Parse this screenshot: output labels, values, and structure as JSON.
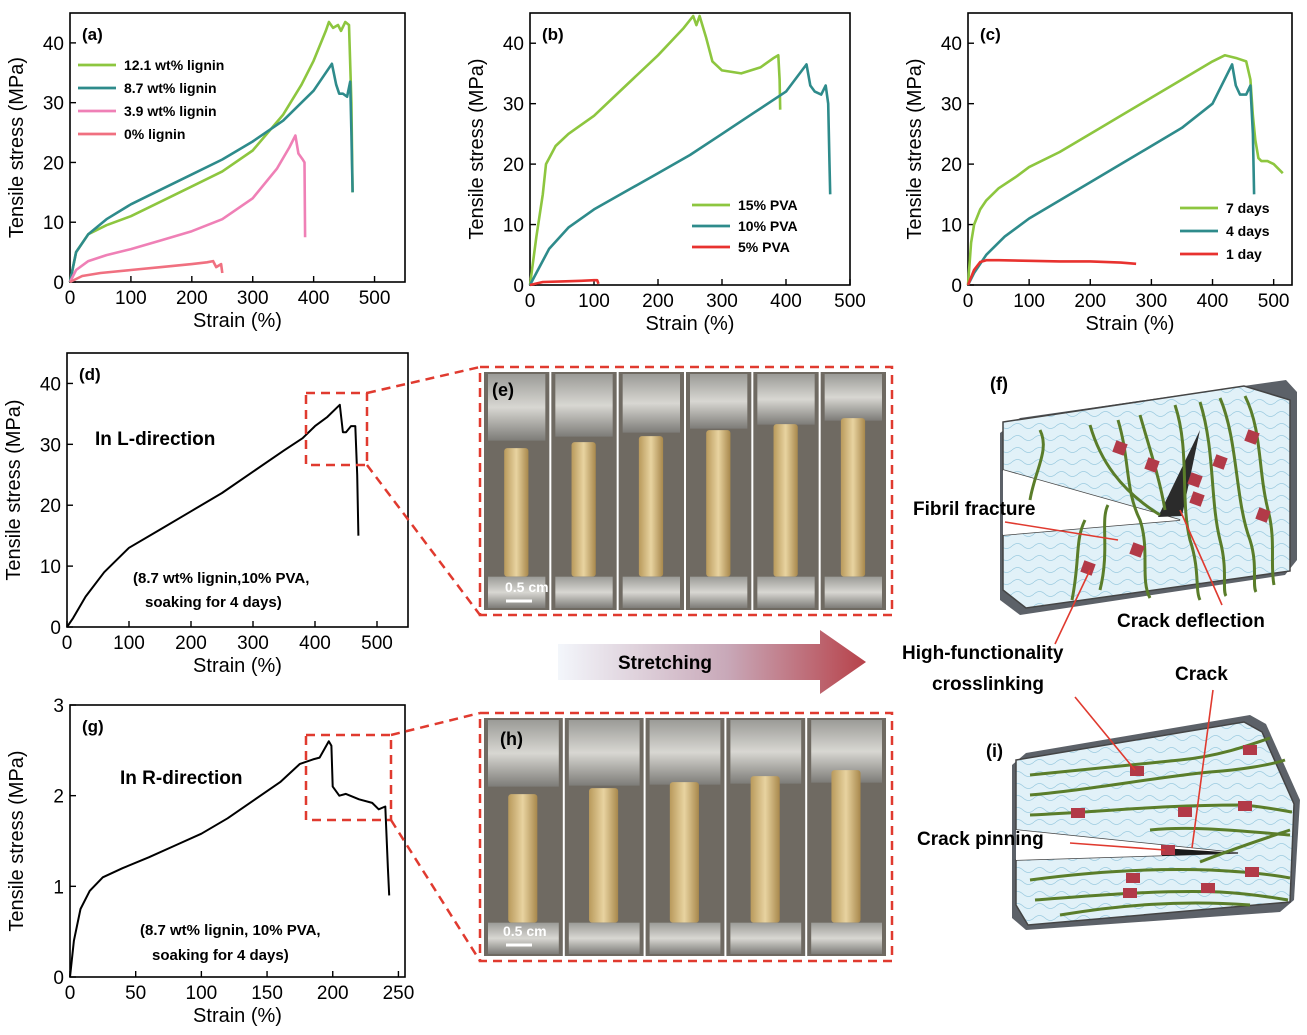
{
  "chart_data": [
    {
      "panel": "(a)",
      "type": "line",
      "xlabel": "Strain (%)",
      "ylabel": "Tensile stress (MPa)",
      "xlim": [
        0,
        550
      ],
      "ylim": [
        0,
        45
      ],
      "xticks": [
        0,
        100,
        200,
        300,
        400,
        500
      ],
      "yticks": [
        0,
        10,
        20,
        30,
        40
      ],
      "legend_position": "top-left",
      "series": [
        {
          "name": "12.1 wt% lignin",
          "color": "#8dc63f",
          "x": [
            0,
            10,
            30,
            60,
            100,
            150,
            200,
            250,
            300,
            350,
            380,
            400,
            420,
            425,
            432,
            440,
            445,
            452,
            458,
            462,
            464
          ],
          "y": [
            0,
            5,
            8,
            9.5,
            11,
            13.5,
            16,
            18.5,
            22,
            28,
            33,
            37,
            42,
            43.5,
            42.5,
            43,
            42,
            43.5,
            43,
            30,
            15
          ]
        },
        {
          "name": "8.7 wt% lignin",
          "color": "#2e8b8b",
          "x": [
            0,
            10,
            30,
            60,
            100,
            150,
            200,
            250,
            300,
            350,
            400,
            430,
            437,
            442,
            448,
            455,
            460,
            462,
            464
          ],
          "y": [
            0,
            5,
            8,
            10.5,
            13,
            15.5,
            18,
            20.5,
            23.5,
            27,
            32,
            36.5,
            33,
            31.5,
            31.5,
            31,
            33.5,
            25,
            15
          ]
        },
        {
          "name": "3.9 wt% lignin",
          "color": "#ef80b6",
          "x": [
            0,
            10,
            30,
            60,
            100,
            150,
            200,
            250,
            300,
            340,
            360,
            370,
            375,
            382,
            385,
            386
          ],
          "y": [
            0,
            2,
            3.5,
            4.5,
            5.5,
            7,
            8.5,
            10.5,
            14,
            19,
            22.5,
            24.5,
            21.5,
            20.5,
            20,
            7.5
          ]
        },
        {
          "name": "0% lignin",
          "color": "#f07080",
          "x": [
            0,
            20,
            50,
            100,
            150,
            200,
            225,
            235,
            240,
            248,
            250
          ],
          "y": [
            0,
            1,
            1.5,
            2,
            2.5,
            3,
            3.3,
            3.5,
            2.5,
            3,
            1.5
          ]
        }
      ]
    },
    {
      "panel": "(b)",
      "type": "line",
      "xlabel": "Strain (%)",
      "ylabel": "Tensile stress (MPa)",
      "xlim": [
        0,
        500
      ],
      "ylim": [
        0,
        45
      ],
      "xticks": [
        0,
        100,
        200,
        300,
        400,
        500
      ],
      "yticks": [
        0,
        10,
        20,
        30,
        40
      ],
      "legend_position": "bottom-right",
      "series": [
        {
          "name": "15% PVA",
          "color": "#8dc63f",
          "x": [
            0,
            10,
            20,
            25,
            30,
            40,
            60,
            100,
            150,
            200,
            240,
            255,
            260,
            265,
            275,
            285,
            300,
            330,
            360,
            380,
            388,
            390,
            391
          ],
          "y": [
            0,
            8,
            15,
            20,
            21,
            23,
            25,
            28,
            33,
            38,
            42.5,
            44.5,
            43,
            44.5,
            41,
            37,
            35.5,
            35,
            36,
            37.5,
            38,
            34,
            29
          ]
        },
        {
          "name": "10% PVA",
          "color": "#2e8b8b",
          "x": [
            0,
            10,
            30,
            60,
            100,
            150,
            200,
            250,
            300,
            350,
            400,
            432,
            438,
            445,
            455,
            462,
            466,
            468,
            469
          ],
          "y": [
            0,
            2,
            6,
            9.5,
            12.5,
            15.5,
            18.5,
            21.5,
            25,
            28.5,
            32,
            36.5,
            33,
            32,
            31.5,
            33,
            30,
            20,
            15
          ]
        },
        {
          "name": "5% PVA",
          "color": "#e8322f",
          "x": [
            0,
            20,
            50,
            80,
            100,
            105,
            107
          ],
          "y": [
            0,
            0.5,
            0.6,
            0.7,
            0.8,
            0.8,
            0.2
          ]
        }
      ]
    },
    {
      "panel": "(c)",
      "type": "line",
      "xlabel": "Strain (%)",
      "ylabel": "Tensile stress (MPa)",
      "xlim": [
        0,
        530
      ],
      "ylim": [
        0,
        45
      ],
      "xticks": [
        0,
        100,
        200,
        300,
        400,
        500
      ],
      "yticks": [
        0,
        10,
        20,
        30,
        40
      ],
      "legend_position": "bottom-right",
      "series": [
        {
          "name": "7 days",
          "color": "#8dc63f",
          "x": [
            0,
            5,
            10,
            20,
            30,
            50,
            80,
            100,
            150,
            200,
            250,
            300,
            350,
            400,
            420,
            440,
            455,
            462,
            466,
            470,
            475,
            480,
            490,
            500,
            510,
            515
          ],
          "y": [
            0,
            7,
            10,
            12.5,
            14,
            16,
            18,
            19.5,
            22,
            25,
            28,
            31,
            34,
            37,
            38,
            37.5,
            37,
            34,
            28,
            24,
            21,
            20.5,
            20.5,
            20,
            19,
            18.5
          ]
        },
        {
          "name": "4 days",
          "color": "#2e8b8b",
          "x": [
            0,
            10,
            30,
            60,
            100,
            150,
            200,
            250,
            300,
            350,
            400,
            432,
            438,
            445,
            455,
            462,
            466,
            468
          ],
          "y": [
            0,
            2,
            5,
            8,
            11,
            14,
            17,
            20,
            23,
            26,
            30,
            36.5,
            33,
            31.5,
            31.5,
            33,
            25,
            15
          ]
        },
        {
          "name": "1 day",
          "color": "#e8322f",
          "x": [
            0,
            10,
            20,
            30,
            50,
            100,
            150,
            200,
            250,
            275
          ],
          "y": [
            0,
            2.5,
            3.8,
            4.1,
            4.1,
            4,
            3.9,
            3.9,
            3.7,
            3.5
          ]
        }
      ]
    },
    {
      "panel": "(d)",
      "type": "line",
      "xlabel": "Strain (%)",
      "ylabel": "Tensile stress (MPa)",
      "xlim": [
        0,
        550
      ],
      "ylim": [
        0,
        45
      ],
      "xticks": [
        0,
        100,
        200,
        300,
        400,
        500
      ],
      "yticks": [
        0,
        10,
        20,
        30,
        40
      ],
      "annotation": "In L-direction",
      "note": [
        "(8.7 wt% lignin,10% PVA,",
        "soaking for 4 days)"
      ],
      "series": [
        {
          "name": "",
          "color": "#000000",
          "x": [
            0,
            10,
            30,
            60,
            100,
            150,
            200,
            250,
            300,
            350,
            380,
            400,
            420,
            435,
            440,
            445,
            450,
            458,
            465,
            468,
            470
          ],
          "y": [
            0,
            1.5,
            5,
            9,
            13,
            16,
            19,
            22,
            25.5,
            29,
            31,
            33,
            34.5,
            36,
            36.5,
            32,
            32,
            33,
            33,
            25,
            15
          ]
        }
      ]
    },
    {
      "panel": "(g)",
      "type": "line",
      "xlabel": "Strain (%)",
      "ylabel": "Tensile stress (MPa)",
      "xlim": [
        0,
        255
      ],
      "ylim": [
        0,
        3
      ],
      "xticks": [
        0,
        50,
        100,
        150,
        200,
        250
      ],
      "yticks": [
        0,
        1,
        2,
        3
      ],
      "annotation": "In R-direction",
      "note": [
        "(8.7 wt% lignin, 10% PVA,",
        "soaking for 4 days)"
      ],
      "series": [
        {
          "name": "",
          "color": "#000000",
          "x": [
            0,
            3,
            8,
            15,
            25,
            40,
            60,
            80,
            100,
            120,
            140,
            160,
            175,
            185,
            190,
            197,
            199,
            200,
            205,
            210,
            220,
            230,
            235,
            240,
            242,
            243
          ],
          "y": [
            0,
            0.4,
            0.75,
            0.95,
            1.1,
            1.2,
            1.32,
            1.45,
            1.58,
            1.75,
            1.95,
            2.15,
            2.35,
            2.4,
            2.42,
            2.6,
            2.55,
            2.1,
            2.0,
            2.02,
            1.96,
            1.92,
            1.85,
            1.88,
            1.2,
            0.9
          ]
        }
      ]
    }
  ],
  "photos": {
    "e": {
      "label": "(e)",
      "scale": "0.5 cm"
    },
    "h": {
      "label": "(h)",
      "scale": "0.5 cm"
    }
  },
  "arrow": {
    "label": "Stretching"
  },
  "schematic": {
    "f_label": "(f)",
    "i_label": "(i)",
    "fibril_fracture": "Fibril fracture",
    "crack_deflection": "Crack deflection",
    "crosslinking_line1": "High-functionality",
    "crosslinking_line2": "crosslinking",
    "crack": "Crack",
    "crack_pinning": "Crack pinning"
  },
  "colors": {
    "green": "#8dc63f",
    "teal": "#2e8b8b",
    "pink": "#ef80b6",
    "salmon": "#f07080",
    "red": "#e8322f",
    "dash": "#e03a2f",
    "fiber": "#5a7d2a",
    "block": "#dff0f8"
  }
}
